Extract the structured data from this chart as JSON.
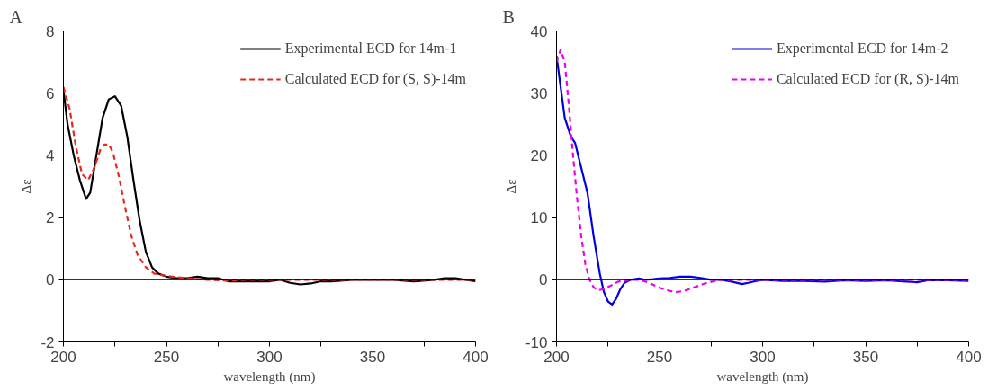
{
  "chart_data": [
    {
      "type": "line",
      "title": "A",
      "xlabel": "wavelength (nm)",
      "ylabel": "Δε",
      "xlim": [
        200,
        400
      ],
      "ylim": [
        -2,
        8
      ],
      "xticks": [
        200,
        {
          "value": 225,
          "label": null
        },
        250,
        {
          "value": 275,
          "label": null
        },
        300,
        {
          "value": 325,
          "label": null
        },
        350,
        {
          "value": 375,
          "label": null
        },
        400
      ],
      "yticks": [
        -2,
        0,
        2,
        4,
        6,
        8
      ],
      "grid": false,
      "legend": "top right",
      "ref_lines": [
        {
          "axis": "y",
          "value": 0,
          "color": "#000000"
        }
      ],
      "series": [
        {
          "name": "Experimental ECD for 14m-1",
          "color": "#000000",
          "line_style": "solid",
          "x": [
            200,
            202,
            205,
            208,
            211,
            213,
            216,
            219,
            222,
            225,
            228,
            231,
            234,
            237,
            240,
            243,
            246,
            250,
            255,
            260,
            265,
            270,
            275,
            280,
            290,
            300,
            305,
            310,
            315,
            320,
            325,
            330,
            340,
            350,
            360,
            370,
            380,
            385,
            390,
            395,
            400
          ],
          "values": [
            6.1,
            5.0,
            4.0,
            3.2,
            2.6,
            2.8,
            4.0,
            5.2,
            5.8,
            5.9,
            5.6,
            4.6,
            3.2,
            1.9,
            0.9,
            0.4,
            0.2,
            0.1,
            0.05,
            0.05,
            0.1,
            0.05,
            0.05,
            -0.05,
            -0.05,
            -0.05,
            0,
            -0.1,
            -0.15,
            -0.12,
            -0.05,
            -0.05,
            0,
            0,
            0,
            -0.05,
            0,
            0.05,
            0.05,
            0,
            -0.05
          ]
        },
        {
          "name": "Calculated ECD for (S, S)-14m",
          "color": "#e8281f",
          "line_style": "dashed",
          "x": [
            200,
            203,
            206,
            209,
            212,
            215,
            218,
            220,
            222,
            224,
            227,
            230,
            233,
            236,
            240,
            244,
            250,
            260,
            270,
            280,
            290,
            300,
            320,
            350,
            400
          ],
          "values": [
            6.2,
            5.5,
            4.3,
            3.4,
            3.2,
            3.6,
            4.2,
            4.35,
            4.35,
            4.1,
            3.3,
            2.3,
            1.4,
            0.8,
            0.4,
            0.2,
            0.12,
            0.05,
            0,
            -0.03,
            0,
            0,
            0,
            0,
            0
          ]
        }
      ]
    },
    {
      "type": "line",
      "title": "B",
      "xlabel": "wavelength (nm)",
      "ylabel": "Δε",
      "xlim": [
        200,
        400
      ],
      "ylim": [
        -10,
        40
      ],
      "xticks": [
        200,
        {
          "value": 225,
          "label": null
        },
        250,
        {
          "value": 275,
          "label": null
        },
        300,
        {
          "value": 325,
          "label": null
        },
        350,
        {
          "value": 375,
          "label": null
        },
        400
      ],
      "yticks": [
        -10,
        0,
        10,
        20,
        30,
        40
      ],
      "grid": false,
      "legend": "top right",
      "ref_lines": [
        {
          "axis": "y",
          "value": 0,
          "color": "#000000"
        }
      ],
      "series": [
        {
          "name": "Experimental ECD for 14m-2",
          "color": "#0000e0",
          "line_style": "solid",
          "x": [
            200,
            202,
            204,
            207,
            209,
            212,
            215,
            218,
            221,
            223,
            225,
            227,
            229,
            231,
            233,
            236,
            240,
            243,
            247,
            250,
            255,
            260,
            265,
            270,
            275,
            280,
            285,
            290,
            293,
            297,
            300,
            310,
            320,
            330,
            340,
            350,
            360,
            370,
            375,
            380,
            390,
            400
          ],
          "values": [
            36,
            31,
            26,
            23,
            22,
            18,
            14,
            7,
            1,
            -2,
            -3.5,
            -4,
            -3,
            -1.5,
            -0.5,
            0,
            0.2,
            0,
            0.1,
            0.2,
            0.3,
            0.5,
            0.5,
            0.3,
            0,
            0,
            -0.3,
            -0.7,
            -0.5,
            -0.2,
            0,
            -0.2,
            -0.2,
            -0.3,
            -0.1,
            -0.2,
            -0.1,
            -0.3,
            -0.4,
            -0.1,
            -0.1,
            -0.2
          ]
        },
        {
          "name": "Calculated ECD for (R, S)-14m",
          "color": "#ee00ee",
          "line_style": "dashed",
          "x": [
            200,
            202,
            204,
            206,
            208,
            210,
            212,
            214,
            216,
            218,
            220,
            223,
            226,
            230,
            235,
            240,
            245,
            250,
            255,
            258,
            262,
            267,
            272,
            277,
            280,
            300,
            400
          ],
          "values": [
            35,
            37,
            35,
            28,
            20,
            13,
            7,
            2.5,
            0,
            -1.2,
            -1.7,
            -1.5,
            -1,
            -0.3,
            0,
            0,
            -0.5,
            -1.3,
            -1.8,
            -2,
            -1.8,
            -1.2,
            -0.6,
            -0.2,
            0,
            0,
            0
          ]
        }
      ]
    }
  ]
}
